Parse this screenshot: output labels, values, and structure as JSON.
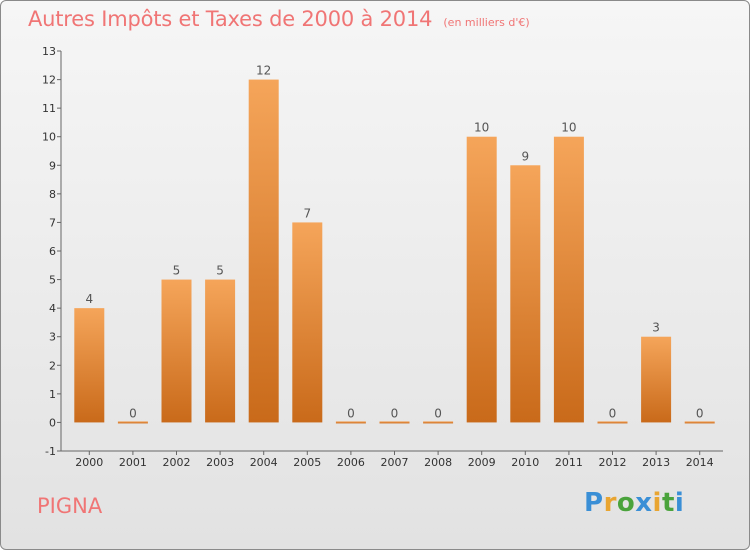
{
  "header": {
    "title": "Autres Impôts et Taxes de 2000 à 2014",
    "subtitle": "(en milliers d'€)"
  },
  "footer": {
    "place": "PIGNA",
    "logo": [
      "P",
      "r",
      "o",
      "x",
      "i",
      "t",
      "i"
    ]
  },
  "colors": {
    "bar_top": "#f5a55a",
    "bar_bottom": "#c96a1a",
    "title": "#f07575"
  },
  "chart_data": {
    "type": "bar",
    "categories": [
      "2000",
      "2001",
      "2002",
      "2003",
      "2004",
      "2005",
      "2006",
      "2007",
      "2008",
      "2009",
      "2010",
      "2011",
      "2012",
      "2013",
      "2014"
    ],
    "values": [
      4,
      0,
      5,
      5,
      12,
      7,
      0,
      0,
      0,
      10,
      9,
      10,
      0,
      3,
      0
    ],
    "ylim": [
      -1,
      13
    ],
    "yticks": [
      -1,
      0,
      1,
      2,
      3,
      4,
      5,
      6,
      7,
      8,
      9,
      10,
      11,
      12,
      13
    ],
    "grid": false
  }
}
